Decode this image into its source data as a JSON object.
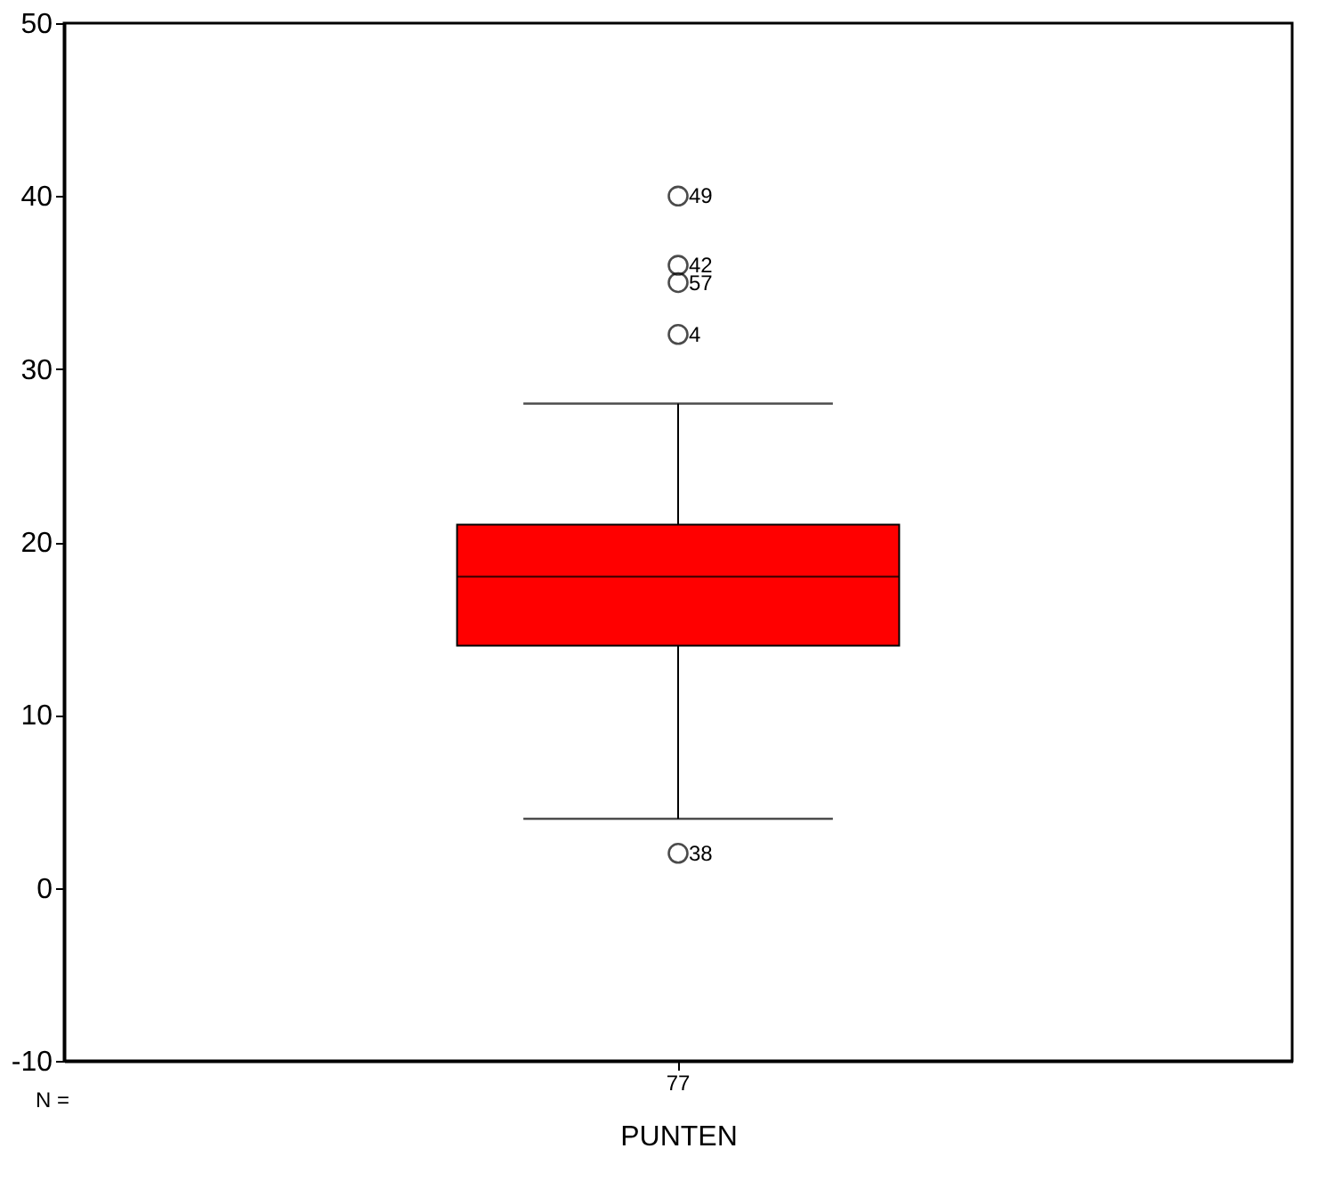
{
  "chart_data": {
    "type": "box",
    "xlabel": "PUNTEN",
    "categories": [
      "77"
    ],
    "series": [
      {
        "color": "#ff0000",
        "boxes": [
          {
            "low": 4,
            "q1": 14,
            "median": 18,
            "q3": 21,
            "high": 28
          }
        ]
      },
      {
        "type": "scatter",
        "color": "#000000",
        "x": [
          "77",
          "77",
          "77",
          "77",
          "77"
        ],
        "values": [
          40,
          36,
          35,
          32,
          2
        ]
      }
    ],
    "ylim": [
      -10,
      50
    ],
    "yticks": [
      -10,
      0,
      10,
      20,
      30,
      40,
      50
    ],
    "grid": false,
    "marker": "circle",
    "annotations": [
      "N =",
      {
        "text": "49",
        "x": "77",
        "y": 40
      },
      {
        "text": "42",
        "x": "77",
        "y": 36
      },
      {
        "text": "57",
        "x": "77",
        "y": 35
      },
      {
        "text": "4",
        "x": "77",
        "y": 32
      },
      {
        "text": "38",
        "x": "77",
        "y": 2
      }
    ]
  }
}
